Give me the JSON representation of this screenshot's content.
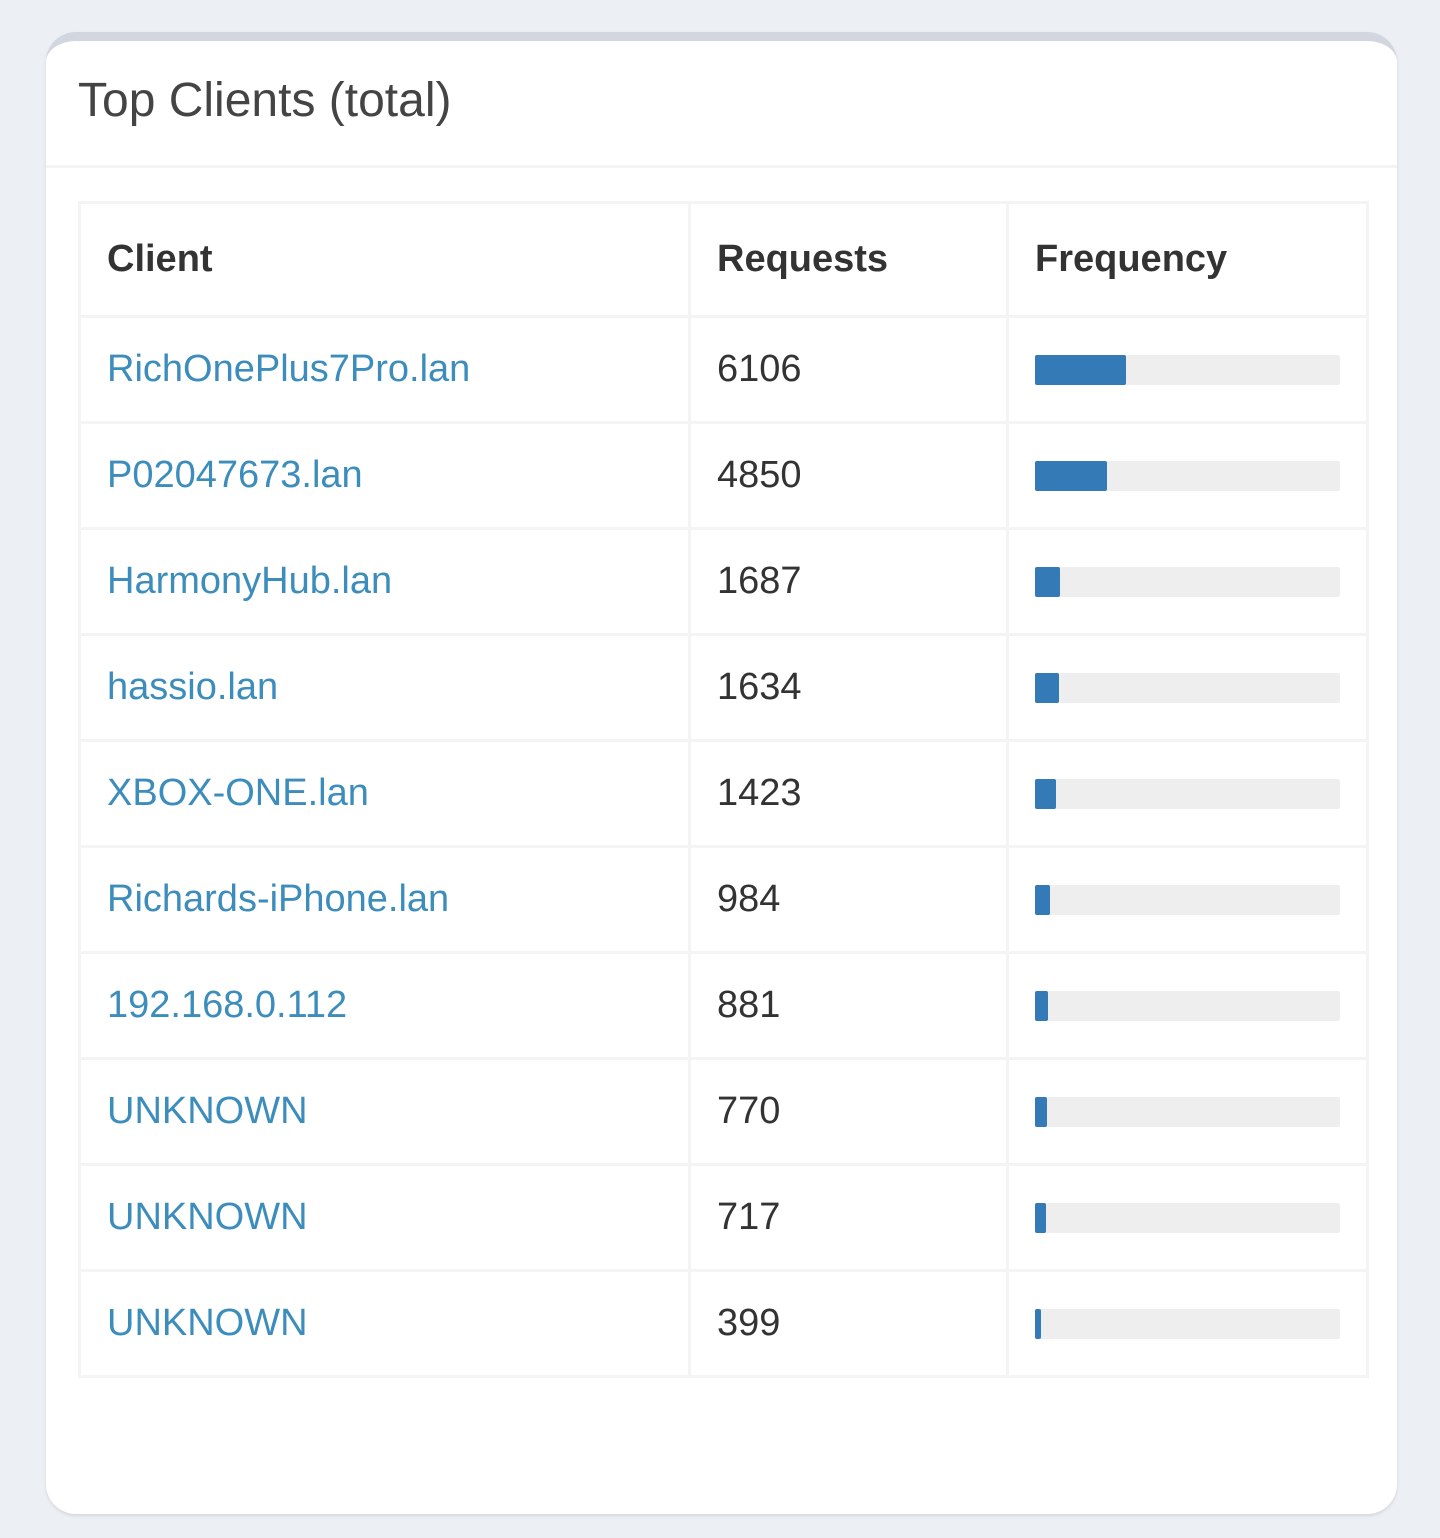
{
  "panel": {
    "title": "Top Clients (total)"
  },
  "table": {
    "headers": [
      "Client",
      "Requests",
      "Frequency"
    ],
    "rows": [
      {
        "client": "RichOnePlus7Pro.lan",
        "requests": "6106",
        "frequency_percent": 29.8
      },
      {
        "client": "P02047673.lan",
        "requests": "4850",
        "frequency_percent": 23.7
      },
      {
        "client": "HarmonyHub.lan",
        "requests": "1687",
        "frequency_percent": 8.2
      },
      {
        "client": "hassio.lan",
        "requests": "1634",
        "frequency_percent": 8.0
      },
      {
        "client": "XBOX-ONE.lan",
        "requests": "1423",
        "frequency_percent": 6.9
      },
      {
        "client": "Richards-iPhone.lan",
        "requests": "984",
        "frequency_percent": 4.8
      },
      {
        "client": "192.168.0.112",
        "requests": "881",
        "frequency_percent": 4.3
      },
      {
        "client": "UNKNOWN",
        "requests": "770",
        "frequency_percent": 3.8
      },
      {
        "client": "UNKNOWN",
        "requests": "717",
        "frequency_percent": 3.5
      },
      {
        "client": "UNKNOWN",
        "requests": "399",
        "frequency_percent": 1.9
      }
    ]
  },
  "colors": {
    "link": "#3c8dbc",
    "bar_fill": "#337ab7",
    "bar_track": "#eeeeee",
    "page_background": "#ecf0f5"
  }
}
